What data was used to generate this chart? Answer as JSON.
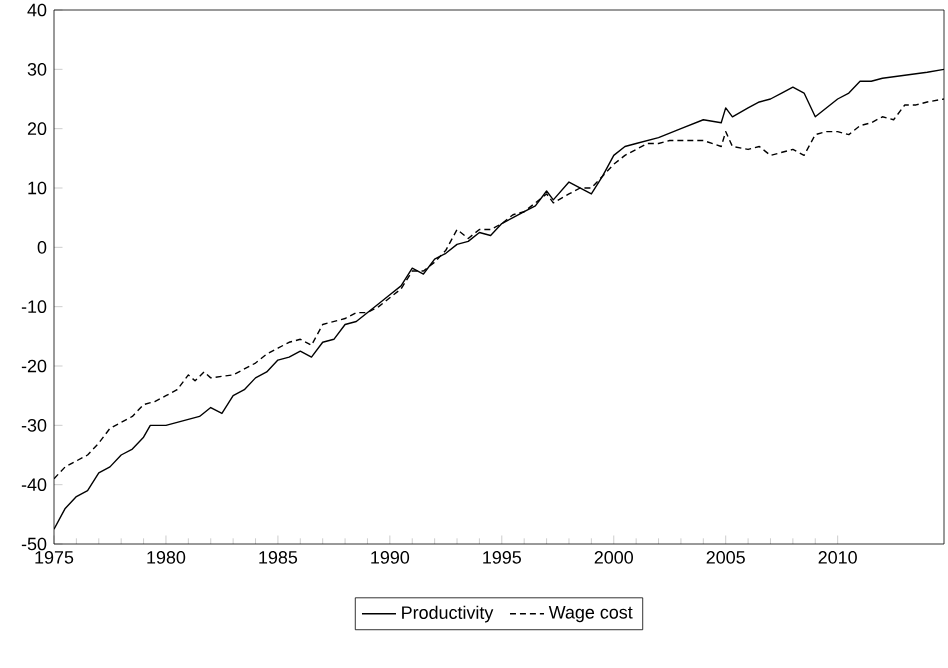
{
  "chart_data": {
    "type": "line",
    "xlim": [
      1975,
      2014.75
    ],
    "xticks": [
      1975,
      1980,
      1985,
      1990,
      1995,
      2000,
      2005,
      2010
    ],
    "ylim": [
      -50,
      40
    ],
    "yticks": [
      -50,
      -40,
      -30,
      -20,
      -10,
      0,
      10,
      20,
      30,
      40
    ],
    "grid": false,
    "legend": "bottom",
    "marker": "none",
    "series": [
      {
        "name": "Productivity",
        "color": "#000000",
        "line_style": "solid",
        "x": [
          1975,
          1975.5,
          1976,
          1976.5,
          1977,
          1977.5,
          1978,
          1978.5,
          1979,
          1979.3,
          1980,
          1981,
          1981.5,
          1982,
          1982.5,
          1983,
          1983.5,
          1984,
          1984.5,
          1985,
          1985.5,
          1986,
          1986.5,
          1987,
          1987.5,
          1988,
          1988.5,
          1989,
          1989.5,
          1990,
          1990.5,
          1991,
          1991.5,
          1992,
          1992.5,
          1993,
          1993.5,
          1994,
          1994.5,
          1995,
          1995.5,
          1996,
          1996.5,
          1997,
          1997.3,
          1998,
          1998.5,
          1999,
          1999.5,
          2000,
          2000.5,
          2001,
          2002,
          2003,
          2004,
          2004.8,
          2005,
          2005.3,
          2006,
          2006.5,
          2007,
          2007.5,
          2008,
          2008.5,
          2009,
          2009.5,
          2010,
          2010.5,
          2011,
          2011.5,
          2012,
          2013,
          2014,
          2014.75
        ],
        "values": [
          -47.5,
          -44,
          -42,
          -41,
          -38,
          -37,
          -35,
          -34,
          -32,
          -30,
          -30,
          -29,
          -28.5,
          -27,
          -28,
          -25,
          -24,
          -22,
          -21,
          -19,
          -18.5,
          -17.5,
          -18.5,
          -16,
          -15.5,
          -13,
          -12.5,
          -11,
          -9.5,
          -8,
          -6.5,
          -3.5,
          -4.5,
          -2,
          -1,
          0.5,
          1,
          2.5,
          2,
          4,
          5,
          6,
          7,
          9.5,
          8,
          11,
          10,
          9,
          12,
          15.5,
          17,
          17.5,
          18.5,
          20,
          21.5,
          21,
          23.5,
          22,
          23.5,
          24.5,
          25,
          26,
          27,
          26,
          22,
          23.5,
          25,
          26,
          28,
          28,
          28.5,
          29,
          29.5,
          30
        ]
      },
      {
        "name": "Wage cost",
        "color": "#000000",
        "line_style": "dashed",
        "x": [
          1975,
          1975.5,
          1976,
          1976.5,
          1977,
          1977.5,
          1978,
          1978.5,
          1979,
          1979.5,
          1980,
          1980.5,
          1981,
          1981.3,
          1981.7,
          1982,
          1983,
          1983.5,
          1984,
          1984.5,
          1985,
          1985.5,
          1986,
          1986.5,
          1987,
          1987.5,
          1988,
          1988.5,
          1989,
          1989.5,
          1990,
          1990.5,
          1991,
          1991.5,
          1992,
          1992.5,
          1993,
          1993.5,
          1994,
          1994.5,
          1995,
          1995.5,
          1996,
          1996.5,
          1997,
          1997.3,
          1998,
          1998.5,
          1999,
          1999.5,
          2000,
          2000.5,
          2001,
          2001.5,
          2002,
          2002.5,
          2003,
          2003.5,
          2004,
          2004.8,
          2005,
          2005.3,
          2006,
          2006.5,
          2007,
          2007.5,
          2008,
          2008.5,
          2009,
          2009.5,
          2010,
          2010.5,
          2011,
          2011.5,
          2012,
          2012.5,
          2013,
          2013.5,
          2014,
          2014.75
        ],
        "values": [
          -39,
          -37,
          -36,
          -35,
          -33,
          -30.5,
          -29.5,
          -28.5,
          -26.5,
          -26,
          -25,
          -24,
          -21.5,
          -22.5,
          -21,
          -22,
          -21.5,
          -20.5,
          -19.5,
          -18,
          -17,
          -16,
          -15.5,
          -16.5,
          -13,
          -12.5,
          -12,
          -11,
          -11,
          -10,
          -8.5,
          -7,
          -4,
          -4,
          -2.5,
          -0.5,
          3,
          1.5,
          3,
          3,
          4,
          5.5,
          6,
          7.5,
          9,
          7.5,
          9,
          10,
          10,
          12,
          14,
          15.5,
          16.5,
          17.5,
          17.5,
          18,
          18,
          18,
          18,
          17,
          19.5,
          17,
          16.5,
          17,
          15.5,
          16,
          16.5,
          15.5,
          19,
          19.5,
          19.5,
          19,
          20.5,
          21,
          22,
          21.5,
          24,
          24,
          24.5,
          25
        ]
      }
    ]
  }
}
